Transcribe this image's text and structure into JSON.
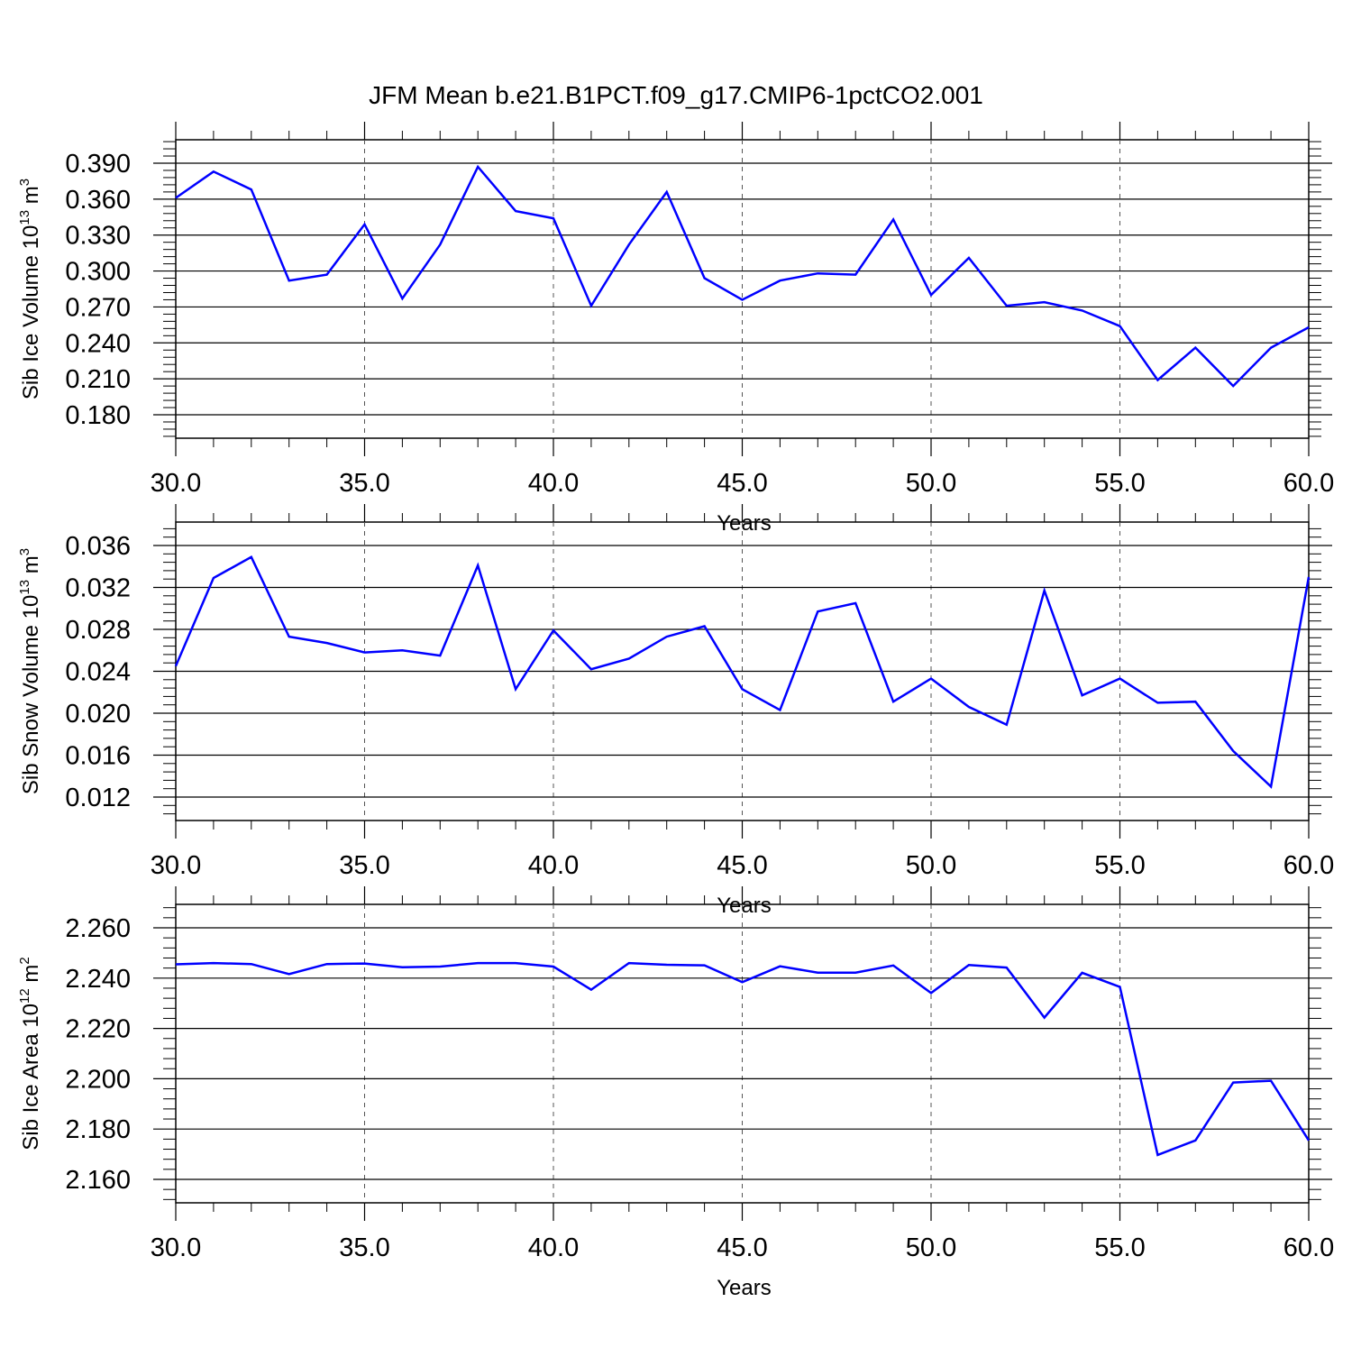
{
  "title": "JFM Mean b.e21.B1PCT.f09_g17.CMIP6-1pctCO2.001",
  "chart_data": [
    {
      "type": "line",
      "xlabel": "Years",
      "ylabel_main": "Sib Ice Volume 10",
      "ylabel_exp": "13",
      "ylabel_unit": " m",
      "ylabel_unit_exp": "3",
      "xlim": [
        30,
        60
      ],
      "ylim": [
        0.18,
        0.39
      ],
      "yticks": [
        0.18,
        0.21,
        0.24,
        0.27,
        0.3,
        0.33,
        0.36,
        0.39
      ],
      "ytick_labels": [
        "0.180",
        "0.210",
        "0.240",
        "0.270",
        "0.300",
        "0.330",
        "0.360",
        "0.390"
      ],
      "xticks": [
        30,
        35,
        40,
        45,
        50,
        55,
        60
      ],
      "xtick_labels": [
        "30.0",
        "35.0",
        "40.0",
        "45.0",
        "50.0",
        "55.0",
        "60.0"
      ],
      "grid": "vertical dashed at major x ticks",
      "color": "#0000ff",
      "x": [
        30,
        31,
        32,
        33,
        34,
        35,
        36,
        37,
        38,
        39,
        40,
        41,
        42,
        43,
        44,
        45,
        46,
        47,
        48,
        49,
        50,
        51,
        52,
        53,
        54,
        55,
        56,
        57,
        58,
        59,
        60
      ],
      "values": [
        0.361,
        0.383,
        0.368,
        0.292,
        0.297,
        0.339,
        0.277,
        0.322,
        0.387,
        0.35,
        0.344,
        0.271,
        0.322,
        0.366,
        0.294,
        0.276,
        0.292,
        0.298,
        0.297,
        0.343,
        0.28,
        0.311,
        0.271,
        0.274,
        0.267,
        0.254,
        0.209,
        0.236,
        0.204,
        0.236,
        0.253
      ]
    },
    {
      "type": "line",
      "xlabel": "Years",
      "ylabel_main": "Sib Snow Volume 10",
      "ylabel_exp": "13",
      "ylabel_unit": " m",
      "ylabel_unit_exp": "3",
      "xlim": [
        30,
        60
      ],
      "ylim": [
        0.012,
        0.036
      ],
      "yticks": [
        0.012,
        0.016,
        0.02,
        0.024,
        0.028,
        0.032,
        0.036
      ],
      "ytick_labels": [
        "0.012",
        "0.016",
        "0.020",
        "0.024",
        "0.028",
        "0.032",
        "0.036"
      ],
      "xticks": [
        30,
        35,
        40,
        45,
        50,
        55,
        60
      ],
      "xtick_labels": [
        "30.0",
        "35.0",
        "40.0",
        "45.0",
        "50.0",
        "55.0",
        "60.0"
      ],
      "grid": "vertical dashed at major x ticks",
      "color": "#0000ff",
      "x": [
        30,
        31,
        32,
        33,
        34,
        35,
        36,
        37,
        38,
        39,
        40,
        41,
        42,
        43,
        44,
        45,
        46,
        47,
        48,
        49,
        50,
        51,
        52,
        53,
        54,
        55,
        56,
        57,
        58,
        59,
        60
      ],
      "values": [
        0.0245,
        0.0329,
        0.0349,
        0.0273,
        0.0267,
        0.0258,
        0.026,
        0.0255,
        0.0341,
        0.0223,
        0.0279,
        0.0242,
        0.0252,
        0.0273,
        0.0283,
        0.0223,
        0.0203,
        0.0297,
        0.0305,
        0.0211,
        0.0233,
        0.0206,
        0.0189,
        0.0317,
        0.0217,
        0.0233,
        0.021,
        0.0211,
        0.0164,
        0.013,
        0.033
      ]
    },
    {
      "type": "line",
      "xlabel": "Years",
      "ylabel_main": "Sib Ice Area 10",
      "ylabel_exp": "12",
      "ylabel_unit": " m",
      "ylabel_unit_exp": "2",
      "xlim": [
        30,
        60
      ],
      "ylim": [
        2.16,
        2.26
      ],
      "yticks": [
        2.16,
        2.18,
        2.2,
        2.22,
        2.24,
        2.26
      ],
      "ytick_labels": [
        "2.160",
        "2.180",
        "2.200",
        "2.220",
        "2.240",
        "2.260"
      ],
      "xticks": [
        30,
        35,
        40,
        45,
        50,
        55,
        60
      ],
      "xtick_labels": [
        "30.0",
        "35.0",
        "40.0",
        "45.0",
        "50.0",
        "55.0",
        "60.0"
      ],
      "grid": "vertical dashed at major x ticks",
      "color": "#0000ff",
      "x": [
        30,
        31,
        32,
        33,
        34,
        35,
        36,
        37,
        38,
        39,
        40,
        41,
        42,
        43,
        44,
        45,
        46,
        47,
        48,
        49,
        50,
        51,
        52,
        53,
        54,
        55,
        56,
        57,
        58,
        59,
        60
      ],
      "values": [
        2.2455,
        2.246,
        2.2456,
        2.2416,
        2.2456,
        2.2458,
        2.2443,
        2.2446,
        2.246,
        2.246,
        2.2446,
        2.2354,
        2.246,
        2.2453,
        2.2451,
        2.2384,
        2.2447,
        2.2422,
        2.2422,
        2.245,
        2.2341,
        2.2452,
        2.2442,
        2.2243,
        2.2421,
        2.2365,
        2.1697,
        2.1755,
        2.1985,
        2.1992,
        2.1755
      ]
    }
  ]
}
